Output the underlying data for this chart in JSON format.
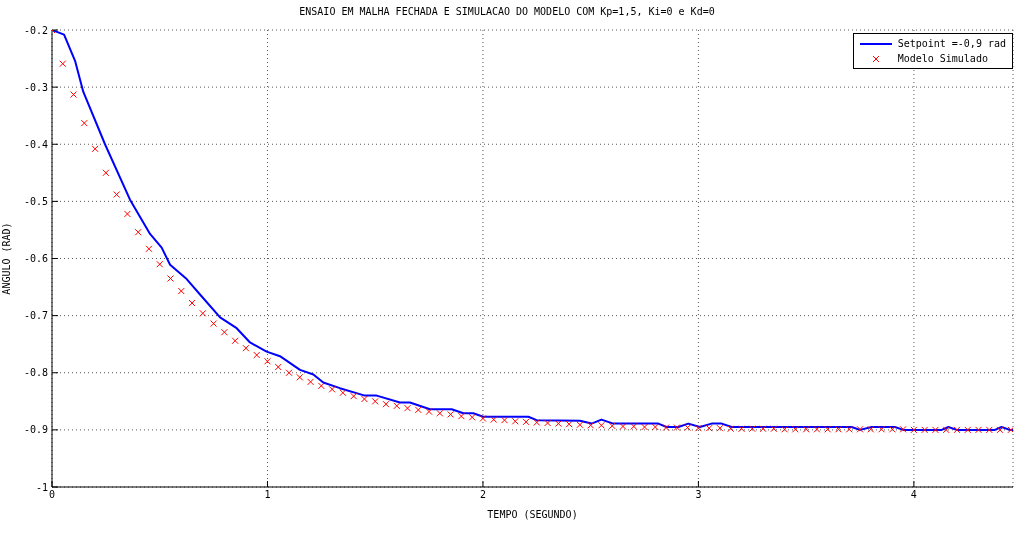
{
  "chart_data": {
    "type": "line",
    "title": "ENSAIO EM MALHA FECHADA E SIMULACAO DO MODELO COM Kp=1,5, Ki=0 e Kd=0",
    "xlabel": "TEMPO (SEGUNDO)",
    "ylabel": "ANGULO (RAD)",
    "xlim": [
      0,
      4.46
    ],
    "xticks": [
      0,
      1,
      2,
      3,
      4
    ],
    "ylim": [
      -1,
      -0.2
    ],
    "yticks": [
      -1,
      -0.9,
      -0.8,
      -0.7,
      -0.6,
      -0.5,
      -0.4,
      -0.3,
      -0.2
    ],
    "grid": true,
    "legend": "top right",
    "series": [
      {
        "name": "Setpoint =-0,9 rad",
        "color": "#0000ff",
        "line_style": "solid",
        "marker": "none",
        "x": [
          0,
          0.056,
          0.107,
          0.145,
          0.246,
          0.362,
          0.455,
          0.509,
          0.548,
          0.625,
          0.687,
          0.78,
          0.857,
          0.919,
          0.996,
          1.058,
          1.151,
          1.213,
          1.259,
          1.336,
          1.452,
          1.507,
          1.615,
          1.661,
          1.754,
          1.855,
          1.909,
          1.955,
          2.001,
          2.211,
          2.249,
          2.45,
          2.504,
          2.55,
          2.605,
          2.814,
          2.852,
          2.907,
          2.953,
          3.007,
          3.061,
          3.108,
          3.154,
          3.711,
          3.75,
          3.804,
          3.912,
          3.951,
          4.129,
          4.16,
          4.199,
          4.376,
          4.407,
          4.445,
          4.46
        ],
        "values": [
          -0.2,
          -0.208,
          -0.254,
          -0.308,
          -0.4,
          -0.497,
          -0.557,
          -0.581,
          -0.611,
          -0.636,
          -0.663,
          -0.703,
          -0.722,
          -0.747,
          -0.763,
          -0.771,
          -0.795,
          -0.803,
          -0.817,
          -0.827,
          -0.84,
          -0.84,
          -0.852,
          -0.852,
          -0.864,
          -0.864,
          -0.871,
          -0.871,
          -0.877,
          -0.877,
          -0.883,
          -0.884,
          -0.889,
          -0.882,
          -0.889,
          -0.889,
          -0.895,
          -0.895,
          -0.889,
          -0.895,
          -0.889,
          -0.889,
          -0.895,
          -0.895,
          -0.9,
          -0.895,
          -0.895,
          -0.9,
          -0.9,
          -0.895,
          -0.9,
          -0.9,
          -0.895,
          -0.9,
          -0.9
        ]
      },
      {
        "name": "Modelo Simulado",
        "type": "scatter",
        "color": "#ff0000",
        "marker": "cross",
        "x": [
          0,
          0.05,
          0.1,
          0.15,
          0.2,
          0.25,
          0.3,
          0.35,
          0.4,
          0.45,
          0.5,
          0.55,
          0.6,
          0.65,
          0.7,
          0.75,
          0.8,
          0.85,
          0.9,
          0.95,
          1,
          1.05,
          1.1,
          1.15,
          1.2,
          1.25,
          1.3,
          1.35,
          1.4,
          1.45,
          1.5,
          1.55,
          1.6,
          1.65,
          1.7,
          1.75,
          1.8,
          1.85,
          1.9,
          1.95,
          2,
          2.05,
          2.1,
          2.15,
          2.2,
          2.25,
          2.3,
          2.35,
          2.4,
          2.45,
          2.5,
          2.55,
          2.6,
          2.65,
          2.7,
          2.75,
          2.8,
          2.85,
          2.9,
          2.95,
          3,
          3.05,
          3.1,
          3.15,
          3.2,
          3.25,
          3.3,
          3.35,
          3.4,
          3.45,
          3.5,
          3.55,
          3.6,
          3.65,
          3.7,
          3.75,
          3.8,
          3.85,
          3.9,
          3.95,
          4,
          4.05,
          4.1,
          4.15,
          4.2,
          4.25,
          4.3,
          4.35,
          4.4,
          4.45
        ],
        "values": [
          -0.2,
          -0.259,
          -0.313,
          -0.363,
          -0.408,
          -0.45,
          -0.488,
          -0.522,
          -0.554,
          -0.583,
          -0.61,
          -0.635,
          -0.657,
          -0.678,
          -0.696,
          -0.714,
          -0.729,
          -0.744,
          -0.757,
          -0.769,
          -0.78,
          -0.79,
          -0.8,
          -0.808,
          -0.816,
          -0.823,
          -0.829,
          -0.835,
          -0.841,
          -0.846,
          -0.85,
          -0.855,
          -0.858,
          -0.862,
          -0.865,
          -0.868,
          -0.871,
          -0.873,
          -0.876,
          -0.878,
          -0.88,
          -0.882,
          -0.883,
          -0.885,
          -0.886,
          -0.887,
          -0.888,
          -0.889,
          -0.89,
          -0.891,
          -0.892,
          -0.892,
          -0.893,
          -0.894,
          -0.894,
          -0.895,
          -0.895,
          -0.896,
          -0.896,
          -0.896,
          -0.897,
          -0.897,
          -0.897,
          -0.898,
          -0.898,
          -0.898,
          -0.898,
          -0.898,
          -0.899,
          -0.899,
          -0.899,
          -0.899,
          -0.899,
          -0.899,
          -0.899,
          -0.899,
          -0.899,
          -0.899,
          -0.899,
          -0.899,
          -0.9,
          -0.9,
          -0.9,
          -0.9,
          -0.9,
          -0.9,
          -0.9,
          -0.9,
          -0.9,
          -0.9
        ]
      }
    ]
  }
}
